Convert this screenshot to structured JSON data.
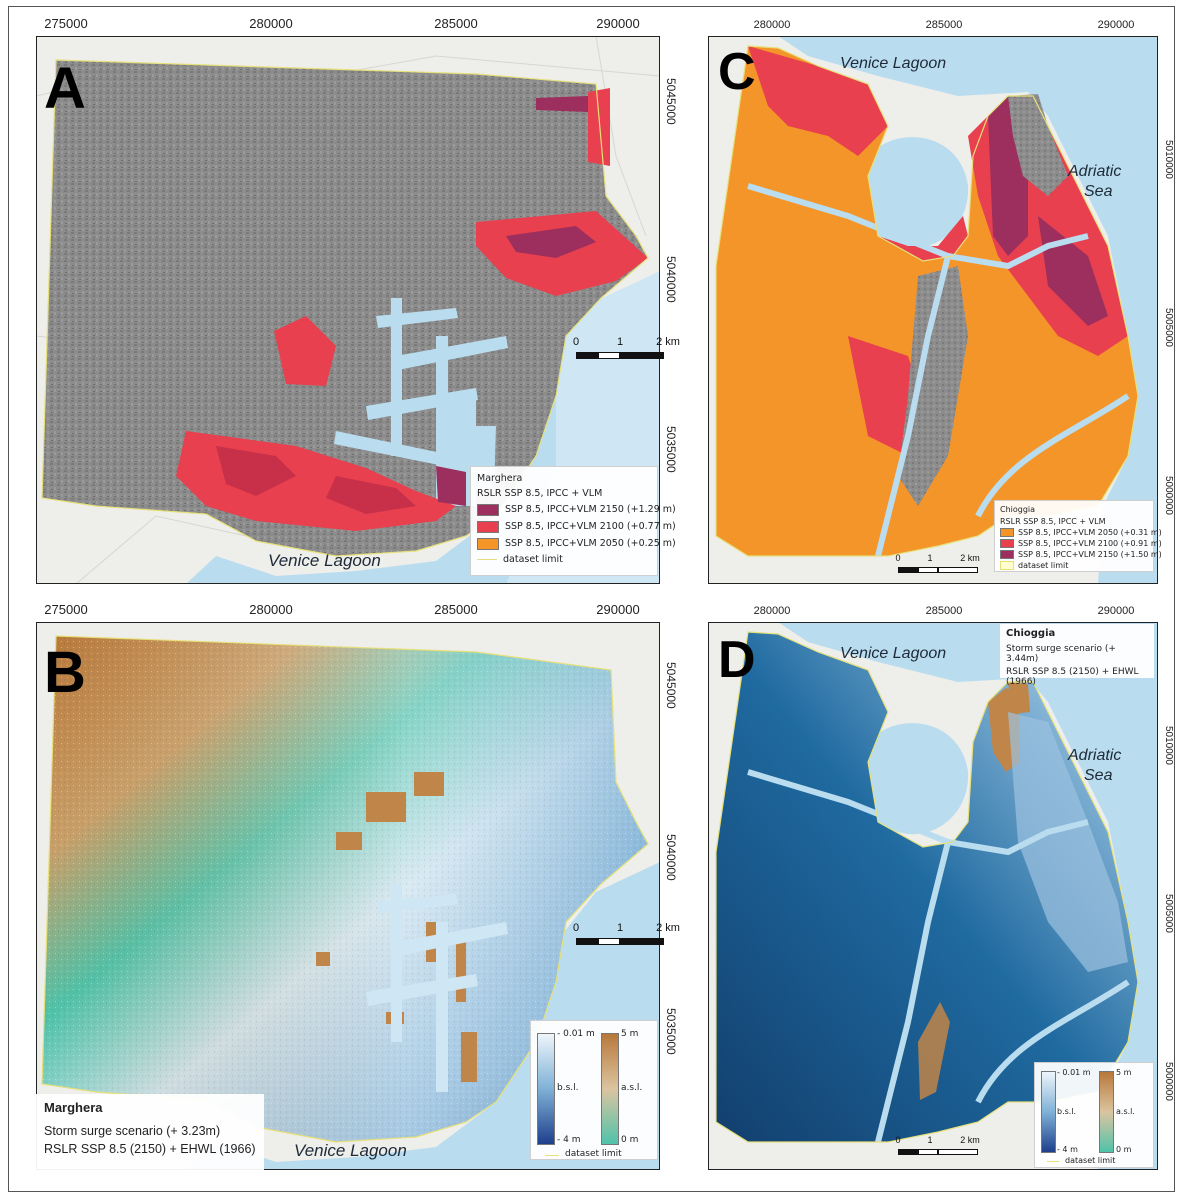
{
  "figure": {
    "panels": [
      {
        "id": "A",
        "letter": "A",
        "x_ticks": [
          "275000",
          "280000",
          "285000",
          "290000"
        ],
        "y_ticks": [
          "5045000",
          "5040000",
          "5035000"
        ],
        "places": [
          {
            "text": "Venice Lagoon"
          }
        ],
        "scalebar": {
          "labels": [
            "0",
            "1",
            "2 km"
          ]
        },
        "legend": {
          "title": "Marghera",
          "subtitle": "RSLR SSP 8.5, IPCC + VLM",
          "items": [
            {
              "label": "SSP 8.5, IPCC+VLM 2150 (+1.29 m)",
              "color": "#9c2f5e"
            },
            {
              "label": "SSP 8.5, IPCC+VLM 2100 (+0.77 m)",
              "color": "#e8404e"
            },
            {
              "label": "SSP 8.5, IPCC+VLM 2050 (+0.25 m)",
              "color": "#f4952a"
            },
            {
              "label": "dataset limit",
              "color": "#e6e07a"
            }
          ]
        }
      },
      {
        "id": "B",
        "letter": "B",
        "x_ticks": [
          "275000",
          "280000",
          "285000",
          "290000"
        ],
        "y_ticks": [
          "5045000",
          "5040000",
          "5035000"
        ],
        "places": [
          {
            "text": "Venice Lagoon"
          }
        ],
        "scalebar": {
          "labels": [
            "0",
            "1",
            "2 km"
          ]
        },
        "info": {
          "title": "Marghera",
          "line1": "Storm surge scenario (+ 3.23m)",
          "line2": "RSLR SSP 8.5 (2150) + EHWL (1966)"
        },
        "legend": {
          "bsl_top": "- 0.01 m",
          "bsl_mid": "b.s.l.",
          "bsl_bottom": "- 4 m",
          "asl_top": "5 m",
          "asl_mid": "a.s.l.",
          "asl_bottom": "0 m",
          "limit": "dataset limit"
        }
      },
      {
        "id": "C",
        "letter": "C",
        "x_ticks": [
          "280000",
          "285000",
          "290000"
        ],
        "y_ticks": [
          "5010000",
          "5005000",
          "5000000"
        ],
        "places": [
          {
            "text": "Venice Lagoon"
          },
          {
            "text": "Adriatic"
          },
          {
            "text": "Sea"
          }
        ],
        "scalebar": {
          "labels": [
            "0",
            "1",
            "2 km"
          ]
        },
        "legend": {
          "title": "Chioggia",
          "subtitle": "RSLR SSP 8.5, IPCC + VLM",
          "items": [
            {
              "label": "SSP 8.5, IPCC+VLM 2050 (+0.31 m)",
              "color": "#f4952a"
            },
            {
              "label": "SSP 8.5, IPCC+VLM 2100 (+0.91 m)",
              "color": "#e8404e"
            },
            {
              "label": "SSP 8.5, IPCC+VLM 2150 (+1.50 m)",
              "color": "#9c2f5e"
            },
            {
              "label": "dataset limit",
              "color": "#e6e07a"
            }
          ]
        }
      },
      {
        "id": "D",
        "letter": "D",
        "x_ticks": [
          "280000",
          "285000",
          "290000"
        ],
        "y_ticks": [
          "5010000",
          "5005000",
          "5000000"
        ],
        "places": [
          {
            "text": "Venice Lagoon"
          },
          {
            "text": "Adriatic"
          },
          {
            "text": "Sea"
          }
        ],
        "scalebar": {
          "labels": [
            "0",
            "1",
            "2 km"
          ]
        },
        "info": {
          "title": "Chioggia",
          "line1": "Storm surge scenario (+ 3.44m)",
          "line2": "RSLR SSP 8.5 (2150) + EHWL (1966)"
        },
        "legend": {
          "bsl_top": "- 0.01 m",
          "bsl_mid": "b.s.l.",
          "bsl_bottom": "- 4 m",
          "asl_top": "5 m",
          "asl_mid": "a.s.l.",
          "asl_bottom": "0 m",
          "limit": "dataset limit"
        }
      }
    ]
  },
  "colors": {
    "water": "#b9dcef",
    "land": "#eeeeea",
    "urban_gray": "#8a8a8a",
    "bsl_light": "#eef5fb",
    "bsl_dark": "#2b5f8e",
    "asl_high": "#b8783a",
    "asl_low": "#4fc3aa",
    "d_base": "#1b5a8c",
    "c_base": "#f4952a",
    "dataset_limit": "#e6e07a"
  }
}
